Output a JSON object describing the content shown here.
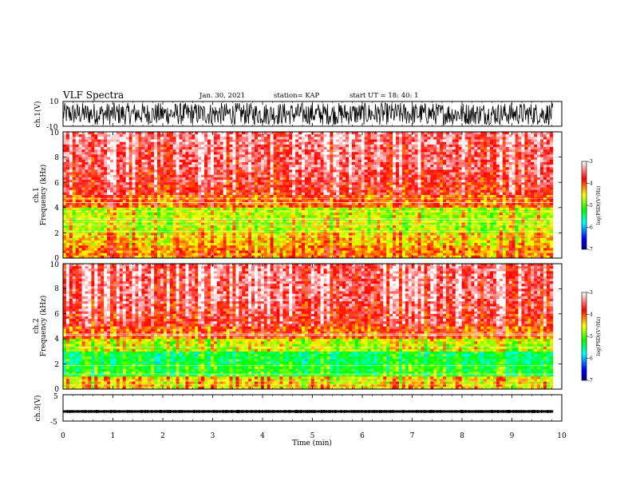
{
  "header": {
    "title": "VLF Spectra",
    "date": "Jan. 30, 2021",
    "station": "station= KAP",
    "start": "start  UT =   18: 40: 1"
  },
  "colors": {
    "colormap": [
      "#000080",
      "#0000ff",
      "#00ffff",
      "#00ff00",
      "#ffff00",
      "#ff0000",
      "#ffffff"
    ],
    "trace": "#000000",
    "background": "#ffffff"
  },
  "chart_data": [
    {
      "type": "line",
      "panel": "ch1-waveform",
      "ylabel": "ch.1(V)",
      "ylim": [
        -10,
        10
      ],
      "yticks": [
        "10",
        "-10"
      ],
      "xlim": [
        0,
        10
      ],
      "x": [
        0,
        1,
        2,
        3,
        4,
        5,
        6,
        7,
        8,
        9,
        9.82
      ],
      "y_envelope_min": [
        -9,
        -9,
        -9,
        -9,
        -9,
        -9,
        -9,
        -9,
        -9,
        -9,
        -9
      ],
      "y_envelope_max": [
        9,
        9,
        9,
        9,
        9,
        9,
        9,
        9,
        9,
        9,
        9
      ]
    },
    {
      "type": "heatmap",
      "panel": "ch1-spectrogram",
      "ylabel": "Frequency  (kHz)",
      "ylabel_channel": "ch.1",
      "xlim": [
        0,
        10
      ],
      "ylim": [
        0,
        10
      ],
      "yticks": [
        "0",
        "2",
        "4",
        "6",
        "8",
        "10"
      ],
      "data_end_min": 9.82,
      "frequency_kHz": [
        0.5,
        1.5,
        2.5,
        3.5,
        4.5,
        5.5,
        6.5,
        7.5,
        8.5,
        9.5
      ],
      "log_psd_approx": [
        -4.0,
        -4.2,
        -4.5,
        -4.5,
        -3.9,
        -3.6,
        -3.5,
        -3.4,
        -3.4,
        -3.3
      ],
      "colorbar": {
        "label": "log(PSD)(V²/Hz)",
        "range": [
          -7,
          -3
        ],
        "ticks": [
          "-3",
          "-4",
          "-5",
          "-6",
          "-7"
        ]
      }
    },
    {
      "type": "heatmap",
      "panel": "ch2-spectrogram",
      "ylabel": "Frequency  (kHz)",
      "ylabel_channel": "ch.2",
      "xlim": [
        0,
        10
      ],
      "ylim": [
        0,
        10
      ],
      "yticks": [
        "0",
        "2",
        "4",
        "6",
        "8",
        "10"
      ],
      "data_end_min": 9.82,
      "frequency_kHz": [
        0.5,
        1.5,
        2.5,
        3.5,
        4.5,
        5.5,
        6.5,
        7.5,
        8.5,
        9.5
      ],
      "log_psd_approx": [
        -4.3,
        -5.0,
        -5.2,
        -4.5,
        -3.9,
        -3.6,
        -3.5,
        -3.4,
        -3.4,
        -3.4
      ],
      "colorbar": {
        "label": "log(PSD)(V²/Hz)",
        "range": [
          -7,
          -3
        ],
        "ticks": [
          "-3",
          "-4",
          "-5",
          "-6",
          "-7"
        ]
      }
    },
    {
      "type": "line",
      "panel": "ch3-waveform",
      "ylabel": "ch.3(V)",
      "ylim": [
        -5,
        5
      ],
      "yticks": [
        "5",
        "-5"
      ],
      "xlim": [
        0,
        10
      ],
      "x": [
        0,
        9.82
      ],
      "y_envelope_min": [
        -1.8,
        -1.8
      ],
      "y_envelope_max": [
        -0.9,
        -0.9
      ],
      "xlabel": "Time  (min)",
      "xticks": [
        "0",
        "1",
        "2",
        "3",
        "4",
        "5",
        "6",
        "7",
        "8",
        "9",
        "10"
      ]
    }
  ]
}
